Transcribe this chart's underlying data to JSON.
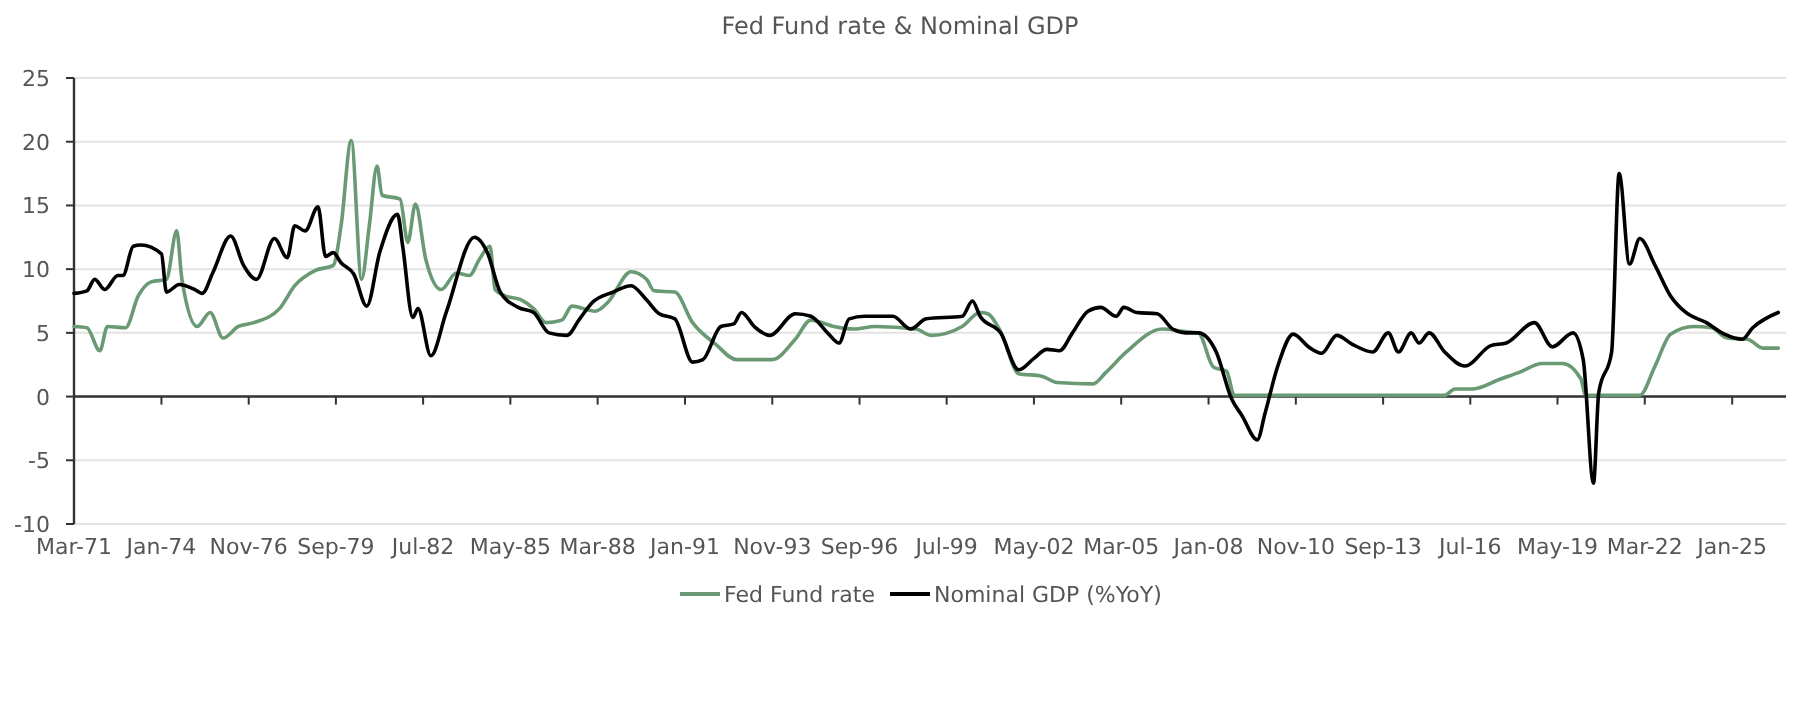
{
  "chart_data": {
    "type": "line",
    "title": "Fed Fund rate & Nominal GDP",
    "xlim": [
      "1971-03",
      "2026-10"
    ],
    "xticks": [
      {
        "value": "1971-03",
        "label": "Mar-71"
      },
      {
        "value": "1974-01",
        "label": "Jan-74"
      },
      {
        "value": "1976-11",
        "label": "Nov-76"
      },
      {
        "value": "1979-09",
        "label": "Sep-79"
      },
      {
        "value": "1982-07",
        "label": "Jul-82"
      },
      {
        "value": "1985-05",
        "label": "May-85"
      },
      {
        "value": "1988-03",
        "label": "Mar-88"
      },
      {
        "value": "1991-01",
        "label": "Jan-91"
      },
      {
        "value": "1993-11",
        "label": "Nov-93"
      },
      {
        "value": "1996-09",
        "label": "Sep-96"
      },
      {
        "value": "1999-07",
        "label": "Jul-99"
      },
      {
        "value": "2002-05",
        "label": "May-02"
      },
      {
        "value": "2005-03",
        "label": "Mar-05"
      },
      {
        "value": "2008-01",
        "label": "Jan-08"
      },
      {
        "value": "2010-11",
        "label": "Nov-10"
      },
      {
        "value": "2013-09",
        "label": "Sep-13"
      },
      {
        "value": "2016-07",
        "label": "Jul-16"
      },
      {
        "value": "2019-05",
        "label": "May-19"
      },
      {
        "value": "2022-03",
        "label": "Mar-22"
      },
      {
        "value": "2025-01",
        "label": "Jan-25"
      }
    ],
    "ylim": [
      -10,
      25
    ],
    "yticks": [
      -10,
      -5,
      0,
      5,
      10,
      15,
      20,
      25
    ],
    "grid": "y",
    "legend": "bottom",
    "series": [
      {
        "name": "Fed Fund rate",
        "color": "#6a9a73",
        "x": [
          "1971-03",
          "1971-08",
          "1972-01",
          "1972-04",
          "1972-11",
          "1973-04",
          "1973-09",
          "1974-03",
          "1974-07",
          "1974-09",
          "1975-03",
          "1975-08",
          "1976-01",
          "1976-07",
          "1977-01",
          "1977-11",
          "1978-05",
          "1979-01",
          "1979-08",
          "1979-11",
          "1980-03",
          "1980-07",
          "1980-10",
          "1981-01",
          "1981-03",
          "1981-10",
          "1982-01",
          "1982-04",
          "1982-08",
          "1983-02",
          "1983-08",
          "1984-01",
          "1984-05",
          "1984-09",
          "1984-11",
          "1985-03",
          "1985-09",
          "1986-02",
          "1986-07",
          "1987-01",
          "1987-05",
          "1988-02",
          "1988-07",
          "1989-04",
          "1989-10",
          "1990-01",
          "1990-09",
          "1991-04",
          "1992-01",
          "1992-09",
          "1993-11",
          "1994-08",
          "1995-02",
          "1995-11",
          "1996-07",
          "1997-03",
          "1998-07",
          "1999-01",
          "2000-01",
          "2000-08",
          "2000-11",
          "2001-04",
          "2001-11",
          "2002-08",
          "2003-02",
          "2004-04",
          "2004-09",
          "2005-05",
          "2006-07",
          "2007-04",
          "2007-09",
          "2008-03",
          "2008-08",
          "2008-11",
          "2015-09",
          "2016-01",
          "2016-08",
          "2017-07",
          "2018-02",
          "2018-11",
          "2019-07",
          "2020-02",
          "2020-04",
          "2022-01",
          "2022-07",
          "2023-01",
          "2023-10",
          "2024-05",
          "2024-11",
          "2025-07",
          "2026-01",
          "2026-07"
        ],
        "values": [
          5.5,
          5.4,
          3.6,
          5.5,
          5.4,
          7.9,
          9,
          9.2,
          13,
          9.2,
          5.5,
          6.6,
          4.6,
          5.5,
          5.8,
          6.9,
          8.7,
          9.9,
          10.3,
          13.4,
          20.1,
          9.2,
          13.4,
          18.1,
          15.8,
          15.5,
          12.1,
          15.1,
          10.8,
          8.4,
          9.7,
          9.5,
          10.8,
          11.8,
          8.4,
          7.9,
          7.6,
          6.9,
          5.8,
          6,
          7.1,
          6.7,
          7.4,
          9.8,
          9.2,
          8.3,
          8.2,
          5.8,
          4.1,
          2.9,
          2.9,
          4.5,
          6,
          5.5,
          5.3,
          5.5,
          5.3,
          4.8,
          5.5,
          6.6,
          6.5,
          5.1,
          1.8,
          1.6,
          1.1,
          1,
          1.9,
          3.5,
          5.3,
          5.1,
          5.0,
          2.3,
          2.0,
          0.1,
          0.1,
          0.6,
          0.6,
          1.4,
          1.9,
          2.6,
          2.6,
          1.4,
          0.1,
          0.1,
          2.4,
          4.9,
          5.5,
          5.4,
          4.6,
          4.5,
          3.8,
          3.8
        ]
      },
      {
        "name": "Nominal GDP (%YoY)",
        "color": "#000000",
        "x": [
          "1971-03",
          "1971-08",
          "1971-11",
          "1972-03",
          "1972-08",
          "1972-10",
          "1973-02",
          "1973-05",
          "1974-01",
          "1974-03",
          "1974-08",
          "1975-02",
          "1975-05",
          "1975-09",
          "1976-04",
          "1976-09",
          "1977-02",
          "1977-09",
          "1978-02",
          "1978-05",
          "1978-09",
          "1979-02",
          "1979-05",
          "1979-08",
          "1979-11",
          "1980-04",
          "1980-09",
          "1981-02",
          "1981-09",
          "1981-11",
          "1982-03",
          "1982-05",
          "1982-10",
          "1983-04",
          "1984-03",
          "1984-08",
          "1985-01",
          "1985-08",
          "1986-02",
          "1986-08",
          "1987-03",
          "1987-08",
          "1988-01",
          "1988-09",
          "1989-04",
          "1989-10",
          "1990-03",
          "1990-09",
          "1991-04",
          "1991-08",
          "1992-03",
          "1992-08",
          "1992-11",
          "1993-04",
          "1993-10",
          "1994-08",
          "1995-02",
          "1995-09",
          "1996-01",
          "1996-05",
          "1996-11",
          "1997-10",
          "1998-05",
          "1998-11",
          "2000-01",
          "2000-05",
          "2000-08",
          "2001-04",
          "2001-11",
          "2002-05",
          "2002-10",
          "2003-03",
          "2003-08",
          "2004-02",
          "2004-07",
          "2005-01",
          "2005-04",
          "2005-09",
          "2006-05",
          "2006-11",
          "2007-04",
          "2007-09",
          "2008-04",
          "2008-10",
          "2009-02",
          "2009-08",
          "2009-11",
          "2010-04",
          "2010-10",
          "2011-04",
          "2011-09",
          "2012-03",
          "2012-09",
          "2013-05",
          "2013-11",
          "2014-03",
          "2014-08",
          "2014-11",
          "2015-03",
          "2015-09",
          "2016-05",
          "2017-03",
          "2017-09",
          "2018-08",
          "2019-03",
          "2019-11",
          "2020-03",
          "2020-07",
          "2020-09",
          "2021-02",
          "2021-05",
          "2021-09",
          "2022-01",
          "2022-07",
          "2023-01",
          "2023-07",
          "2024-03",
          "2024-10",
          "2025-05",
          "2025-09",
          "2026-07"
        ],
        "values": [
          8.1,
          8.3,
          9.2,
          8.4,
          9.5,
          9.5,
          11.8,
          11.9,
          11.2,
          8.2,
          8.8,
          8.4,
          8.1,
          9.7,
          12.6,
          10.3,
          9.2,
          12.4,
          10.9,
          13.4,
          13,
          14.9,
          11,
          11.3,
          10.5,
          9.6,
          7.1,
          11.3,
          14.3,
          11.8,
          6.2,
          6.9,
          3.2,
          6.6,
          12.5,
          11.3,
          8.2,
          7,
          6.6,
          5,
          4.8,
          6.1,
          7.4,
          8.2,
          8.7,
          7.6,
          6.5,
          6.1,
          2.7,
          2.9,
          5.5,
          5.7,
          6.6,
          5.5,
          4.8,
          6.5,
          6.3,
          4.9,
          4.2,
          6.1,
          6.3,
          6.3,
          5.3,
          6.1,
          6.3,
          7.5,
          6.3,
          5,
          2.1,
          3.0,
          3.7,
          3.6,
          5,
          6.7,
          7,
          6.3,
          7,
          6.6,
          6.5,
          5.3,
          5,
          5.0,
          3.5,
          -0.2,
          -1.5,
          -3.4,
          -1.3,
          2.4,
          4.9,
          3.9,
          3.4,
          4.8,
          4.1,
          3.5,
          5,
          3.5,
          5,
          4.2,
          5,
          3.5,
          2.4,
          4,
          4.2,
          5.8,
          3.9,
          5,
          2.9,
          -6.8,
          0.3,
          3.5,
          17.5,
          10.4,
          12.4,
          10.3,
          7.9,
          6.6,
          5.8,
          4.9,
          4.5,
          5.4,
          6.6
        ]
      }
    ]
  }
}
